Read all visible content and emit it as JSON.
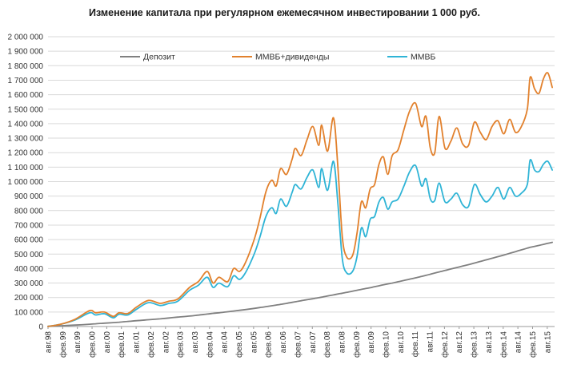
{
  "chart_data": {
    "type": "line",
    "title": "Изменение капитала при регулярном ежемесячном инвестировании 1 000 руб.",
    "xlabel": "",
    "ylabel": "",
    "ylim": [
      0,
      2000000
    ],
    "grid": true,
    "legend_position": "top",
    "y_ticks": [
      "0",
      "100 000",
      "200 000",
      "300 000",
      "400 000",
      "500 000",
      "600 000",
      "700 000",
      "800 000",
      "900 000",
      "1 000 000",
      "1 100 000",
      "1 200 000",
      "1 300 000",
      "1 400 000",
      "1 500 000",
      "1 600 000",
      "1 700 000",
      "1 800 000",
      "1 900 000",
      "2 000 000"
    ],
    "x_tick_labels": [
      "авг.98",
      "фев.99",
      "авг.99",
      "фев.00",
      "авг.00",
      "фев.01",
      "авг.01",
      "фев.02",
      "авг.02",
      "фев.03",
      "авг.03",
      "фев.04",
      "авг.04",
      "фев.05",
      "авг.05",
      "фев.06",
      "авг.06",
      "фев.07",
      "авг.07",
      "фев.08",
      "авг.08",
      "фев.09",
      "авг.09",
      "фев.10",
      "авг.10",
      "фев.11",
      "авг.11",
      "фев.12",
      "авг.12",
      "фев.13",
      "авг.13",
      "фев.14",
      "авг.14",
      "фев.15",
      "авг.15"
    ],
    "x": [
      1998.58,
      1999.0,
      1999.5,
      2000.0,
      2000.2,
      2000.5,
      2000.8,
      2001.0,
      2001.3,
      2001.6,
      2002.0,
      2002.4,
      2002.7,
      2003.0,
      2003.4,
      2003.7,
      2004.0,
      2004.2,
      2004.4,
      2004.7,
      2004.9,
      2005.1,
      2005.3,
      2005.6,
      2005.8,
      2006.0,
      2006.2,
      2006.35,
      2006.5,
      2006.7,
      2006.9,
      2007.0,
      2007.2,
      2007.4,
      2007.6,
      2007.8,
      2007.9,
      2008.1,
      2008.3,
      2008.45,
      2008.6,
      2008.75,
      2008.95,
      2009.1,
      2009.25,
      2009.4,
      2009.55,
      2009.7,
      2009.85,
      2010.0,
      2010.15,
      2010.3,
      2010.5,
      2010.7,
      2010.9,
      2011.1,
      2011.3,
      2011.45,
      2011.6,
      2011.75,
      2011.9,
      2012.1,
      2012.3,
      2012.5,
      2012.7,
      2012.9,
      2013.1,
      2013.3,
      2013.5,
      2013.7,
      2013.9,
      2014.1,
      2014.3,
      2014.5,
      2014.7,
      2014.9,
      2015.0,
      2015.15,
      2015.3,
      2015.45,
      2015.6,
      2015.75
    ],
    "series": [
      {
        "name": "Депозит",
        "color": "#808080",
        "values": [
          1000,
          5000,
          10000,
          16000,
          19000,
          23000,
          27000,
          30000,
          35000,
          40000,
          47000,
          53000,
          59000,
          65000,
          72000,
          79000,
          86000,
          91000,
          95000,
          102000,
          107000,
          112000,
          117000,
          125000,
          131000,
          137000,
          143000,
          148000,
          153000,
          160000,
          167000,
          171000,
          178000,
          185000,
          192000,
          199000,
          203000,
          211000,
          218000,
          224000,
          230000,
          236000,
          244000,
          250000,
          256000,
          262000,
          268000,
          275000,
          281000,
          288000,
          294000,
          300000,
          309000,
          318000,
          327000,
          336000,
          346000,
          353000,
          361000,
          369000,
          377000,
          387000,
          397000,
          407000,
          417000,
          427000,
          438000,
          449000,
          460000,
          471000,
          482000,
          493000,
          505000,
          517000,
          529000,
          541000,
          547000,
          553000,
          560000,
          567000,
          574000,
          581000
        ]
      },
      {
        "name": "ММВБ+дивиденды",
        "color": "#E2812D",
        "values": [
          1000,
          15000,
          50000,
          110000,
          95000,
          100000,
          70000,
          95000,
          90000,
          135000,
          180000,
          160000,
          175000,
          190000,
          270000,
          310000,
          380000,
          300000,
          340000,
          310000,
          400000,
          380000,
          440000,
          600000,
          750000,
          930000,
          1010000,
          970000,
          1090000,
          1050000,
          1160000,
          1230000,
          1180000,
          1290000,
          1380000,
          1250000,
          1390000,
          1210000,
          1440000,
          1100000,
          620000,
          480000,
          490000,
          640000,
          860000,
          820000,
          950000,
          980000,
          1120000,
          1170000,
          1050000,
          1180000,
          1220000,
          1360000,
          1490000,
          1540000,
          1380000,
          1450000,
          1230000,
          1200000,
          1450000,
          1230000,
          1280000,
          1370000,
          1260000,
          1250000,
          1410000,
          1340000,
          1290000,
          1380000,
          1420000,
          1330000,
          1430000,
          1340000,
          1380000,
          1500000,
          1720000,
          1640000,
          1610000,
          1710000,
          1750000,
          1650000
        ]
      },
      {
        "name": "ММВБ",
        "color": "#2FB4D6",
        "values": [
          1000,
          15000,
          45000,
          95000,
          80000,
          88000,
          60000,
          85000,
          80000,
          120000,
          165000,
          145000,
          160000,
          175000,
          250000,
          285000,
          340000,
          270000,
          300000,
          275000,
          350000,
          325000,
          370000,
          500000,
          620000,
          760000,
          820000,
          780000,
          880000,
          830000,
          930000,
          980000,
          950000,
          1030000,
          1080000,
          960000,
          1090000,
          940000,
          1140000,
          850000,
          470000,
          370000,
          380000,
          480000,
          680000,
          620000,
          740000,
          760000,
          860000,
          890000,
          810000,
          860000,
          880000,
          970000,
          1070000,
          1110000,
          970000,
          1020000,
          880000,
          870000,
          990000,
          860000,
          880000,
          920000,
          840000,
          830000,
          980000,
          910000,
          860000,
          900000,
          960000,
          880000,
          960000,
          900000,
          920000,
          980000,
          1150000,
          1080000,
          1070000,
          1120000,
          1140000,
          1080000
        ]
      }
    ]
  }
}
